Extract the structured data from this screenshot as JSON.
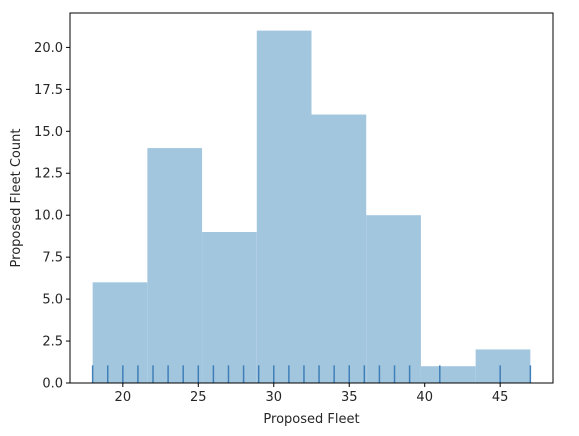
{
  "chart_data": {
    "type": "bar",
    "xlabel": "Proposed Fleet",
    "ylabel": "Proposed Fleet Count",
    "xlim": [
      16.5,
      48.5
    ],
    "ylim": [
      0,
      22.05
    ],
    "x_ticks": [
      20,
      25,
      30,
      35,
      40,
      45
    ],
    "y_ticks": [
      0,
      2.5,
      5,
      7.5,
      10,
      12.5,
      15,
      17.5,
      20
    ],
    "y_tick_labels": [
      "0.0",
      "2.5",
      "5.0",
      "7.5",
      "10.0",
      "12.5",
      "15.0",
      "17.5",
      "20.0"
    ],
    "bins": [
      {
        "x0": 18.0,
        "x1": 21.625,
        "count": 6
      },
      {
        "x0": 21.625,
        "x1": 25.25,
        "count": 14
      },
      {
        "x0": 25.25,
        "x1": 28.875,
        "count": 9
      },
      {
        "x0": 28.875,
        "x1": 32.5,
        "count": 21
      },
      {
        "x0": 32.5,
        "x1": 36.125,
        "count": 16
      },
      {
        "x0": 36.125,
        "x1": 39.75,
        "count": 10
      },
      {
        "x0": 39.75,
        "x1": 43.375,
        "count": 1
      },
      {
        "x0": 43.375,
        "x1": 47.0,
        "count": 2
      }
    ],
    "rug_values": [
      18,
      19,
      20,
      21,
      22,
      23,
      24,
      25,
      26,
      27,
      28,
      29,
      30,
      31,
      32,
      33,
      34,
      35,
      36,
      37,
      38,
      39,
      41,
      45,
      47
    ],
    "rug_height": 1.05,
    "grid": false,
    "colors": {
      "bar": "#a3c6df",
      "rug": "#3f7fb8",
      "axis": "#000000"
    }
  }
}
